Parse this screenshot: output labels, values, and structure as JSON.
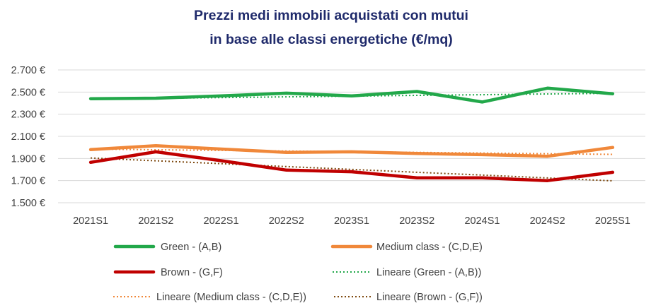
{
  "chart_data": {
    "type": "line",
    "title": [
      "Prezzi medi immobili acquistati con mutui",
      "in base alle classi energetiche (€/mq)"
    ],
    "categories": [
      "2021S1",
      "2021S2",
      "2022S1",
      "2022S2",
      "2023S1",
      "2023S2",
      "2024S1",
      "2024S2",
      "2025S1"
    ],
    "ylim": [
      1500,
      2700
    ],
    "yticks": [
      1500,
      1700,
      1900,
      2100,
      2300,
      2500,
      2700
    ],
    "ytick_labels": [
      "1.500 €",
      "1.700 €",
      "1.900 €",
      "2.100 €",
      "2.300 €",
      "2.500 €",
      "2.700 €"
    ],
    "grid": true,
    "legend_position": "bottom",
    "series": [
      {
        "name": "Green - (A,B)",
        "color": "#22a84a",
        "style": "solid",
        "values": [
          2440,
          2445,
          2465,
          2490,
          2465,
          2505,
          2410,
          2535,
          2485
        ]
      },
      {
        "name": "Medium class - (C,D,E)",
        "color": "#f0883a",
        "style": "solid",
        "values": [
          1980,
          2015,
          1985,
          1955,
          1960,
          1945,
          1935,
          1920,
          2000
        ]
      },
      {
        "name": "Brown - (G,F)",
        "color": "#c00000",
        "style": "solid",
        "values": [
          1865,
          1960,
          1880,
          1795,
          1780,
          1725,
          1725,
          1700,
          1775
        ]
      },
      {
        "name": "Lineare (Green - (A,B))",
        "color": "#22a84a",
        "style": "dotted",
        "values": [
          2437,
          2444,
          2450,
          2457,
          2463,
          2470,
          2476,
          2483,
          2489
        ]
      },
      {
        "name": "Lineare (Medium class - (C,D,E))",
        "color": "#f0883a",
        "style": "dotted",
        "values": [
          1985,
          1979,
          1973,
          1967,
          1961,
          1955,
          1949,
          1943,
          1937
        ]
      },
      {
        "name": "Lineare (Brown - (G,F))",
        "color": "#7f4a10",
        "style": "dotted",
        "values": [
          1905,
          1879,
          1853,
          1827,
          1801,
          1775,
          1750,
          1724,
          1698
        ]
      }
    ]
  }
}
